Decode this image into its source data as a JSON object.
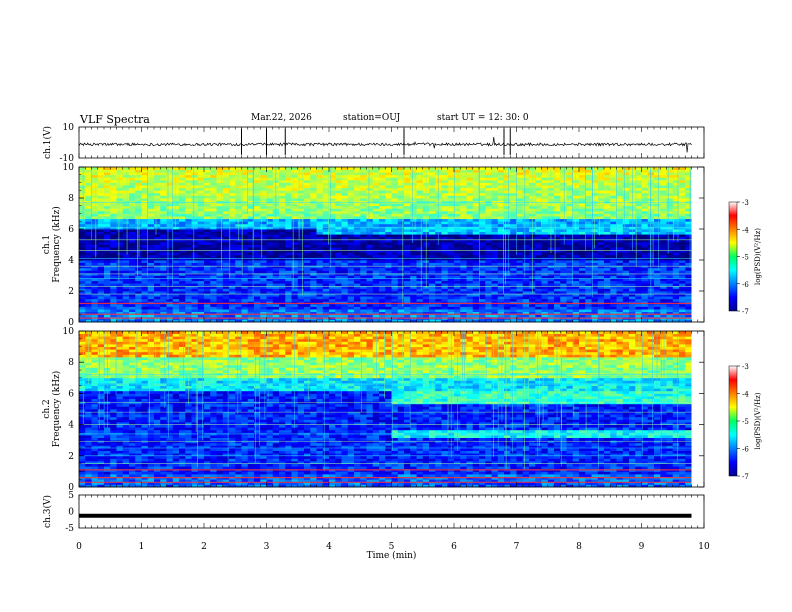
{
  "header": {
    "title": "VLF Spectra",
    "date": "Mar.22, 2026",
    "station": "station=OUJ",
    "start_time": "start  UT  =   12: 30: 0"
  },
  "chart_data": [
    {
      "type": "line",
      "name": "ch1-waveform",
      "ylabel": "ch.1(V)",
      "ylim": [
        -10,
        10
      ],
      "tick_labels": [
        "10",
        "-10"
      ]
    },
    {
      "type": "heatmap",
      "name": "ch1-spectrogram",
      "ylabel_line1": "ch.1",
      "ylabel_line2": "Frequency  (kHz)",
      "ylim": [
        0,
        10
      ],
      "yticks": [
        0,
        2,
        4,
        6,
        8,
        10
      ],
      "xlim": [
        0,
        10
      ],
      "colorbar": {
        "label": "log(PSD)(V²/Hz)",
        "ticks": [
          -3,
          -4,
          -5,
          -6,
          -7
        ]
      },
      "features": [
        "broadband emission above ~6.5 kHz",
        "dark band ~4-6 kHz",
        "horizontal tone lines below 4 kHz",
        "step change near 3.8 min"
      ]
    },
    {
      "type": "heatmap",
      "name": "ch2-spectrogram",
      "ylabel_line1": "ch.2",
      "ylabel_line2": "Frequency  (kHz)",
      "ylim": [
        0,
        10
      ],
      "yticks": [
        0,
        2,
        4,
        6,
        8,
        10
      ],
      "xlim": [
        0,
        10
      ],
      "colorbar": {
        "label": "log(PSD)(V²/Hz)",
        "ticks": [
          -3,
          -4,
          -5,
          -6,
          -7
        ]
      },
      "features": [
        "strong emission above ~8 kHz",
        "band near 5.5 kHz after 5 min",
        "band near 3.3 kHz after 5 min",
        "step change near 3.8 min"
      ]
    },
    {
      "type": "line",
      "name": "ch3-waveform",
      "ylabel": "ch.3(V)",
      "ylim": [
        -5,
        5
      ],
      "tick_labels": [
        "5",
        "0",
        "-5"
      ],
      "constant_value": -1.3
    }
  ],
  "time_axis": {
    "xlabel": "Time  (min)",
    "range": [
      0,
      10
    ],
    "tick_labels": [
      "0",
      "1",
      "2",
      "3",
      "4",
      "5",
      "6",
      "7",
      "8",
      "9",
      "10"
    ]
  }
}
